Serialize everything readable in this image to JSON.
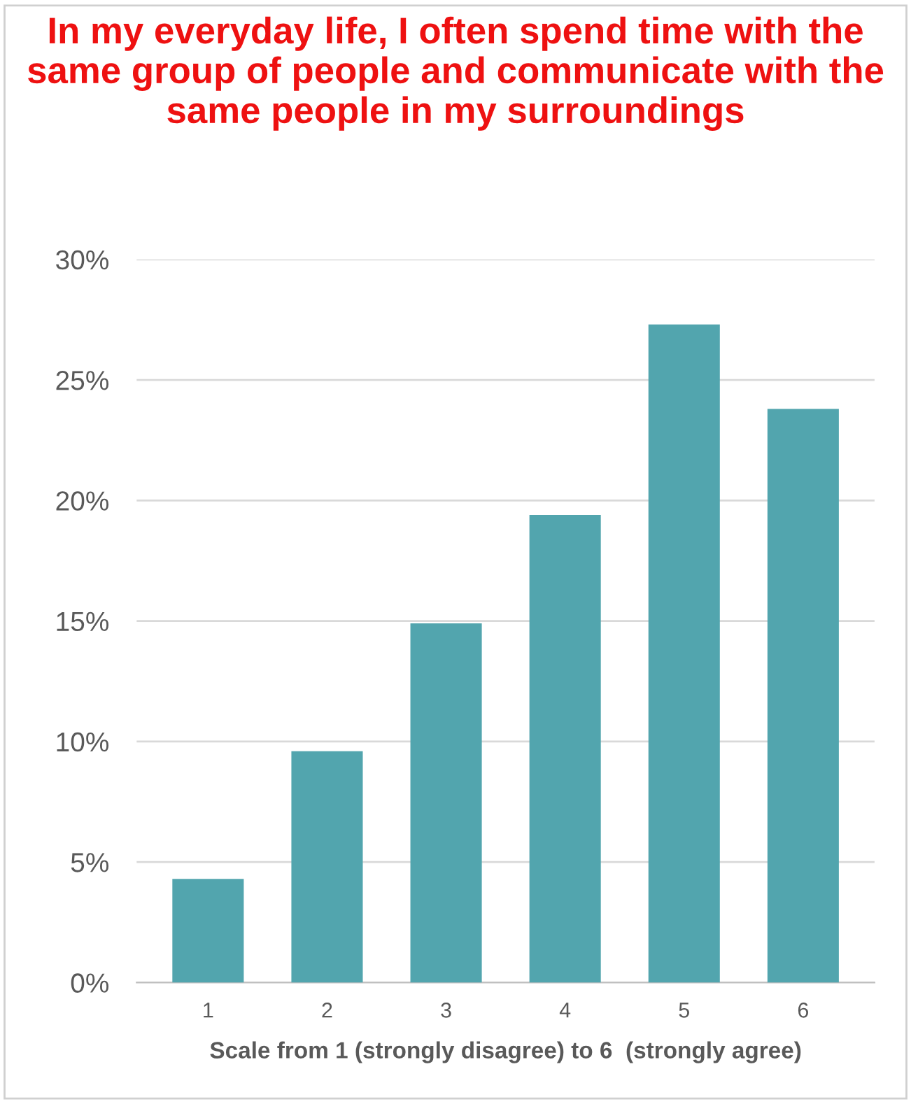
{
  "chart_data": {
    "type": "bar",
    "title": "In my everyday life, I often spend time with the same group of people and communicate with the same people in my surroundings",
    "xlabel": "Scale from 1 (strongly disagree) to 6  (strongly agree)",
    "categories": [
      "1",
      "2",
      "3",
      "4",
      "5",
      "6"
    ],
    "values": [
      4.3,
      9.6,
      14.9,
      19.4,
      27.3,
      23.8
    ],
    "color": "#52a5ae",
    "ylim": [
      0,
      30
    ],
    "yticks": [
      {
        "value": 0,
        "label": "0%"
      },
      {
        "value": 5,
        "label": "5%"
      },
      {
        "value": 10,
        "label": "10%"
      },
      {
        "value": 15,
        "label": "15%"
      },
      {
        "value": 20,
        "label": "20%"
      },
      {
        "value": 25,
        "label": "25%"
      },
      {
        "value": 30,
        "label": "30%"
      }
    ],
    "grid": "y"
  }
}
